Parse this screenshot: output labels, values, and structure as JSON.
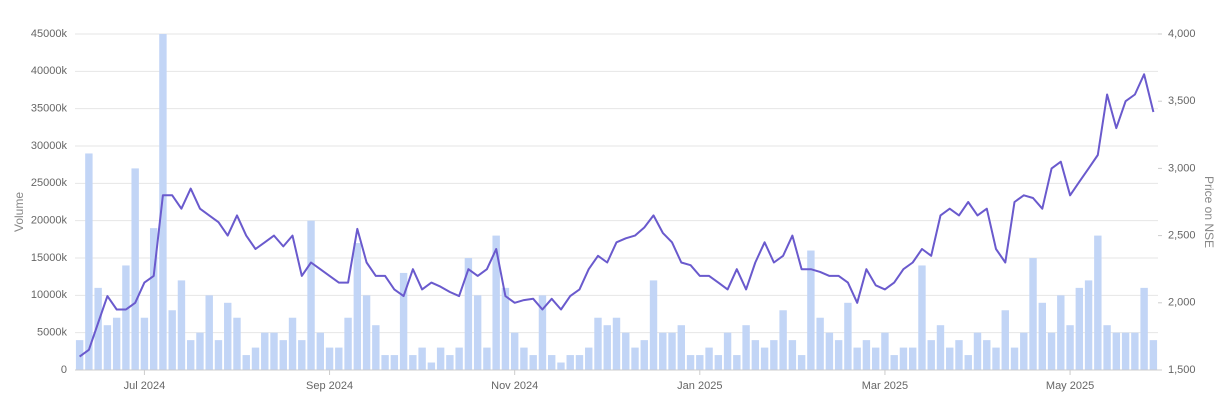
{
  "chart_data": {
    "type": "bar-line",
    "categories": [
      null,
      null,
      null,
      null,
      null,
      null,
      null,
      "Jul 2024",
      null,
      null,
      null,
      null,
      null,
      null,
      null,
      null,
      null,
      null,
      null,
      null,
      null,
      null,
      null,
      null,
      null,
      null,
      null,
      "Sep 2024",
      null,
      null,
      null,
      null,
      null,
      null,
      null,
      null,
      null,
      null,
      null,
      null,
      null,
      null,
      null,
      null,
      null,
      null,
      null,
      "Nov 2024",
      null,
      null,
      null,
      null,
      null,
      null,
      null,
      null,
      null,
      null,
      null,
      null,
      null,
      null,
      null,
      null,
      null,
      null,
      null,
      "Jan 2025",
      null,
      null,
      null,
      null,
      null,
      null,
      null,
      null,
      null,
      null,
      null,
      null,
      null,
      null,
      null,
      null,
      null,
      null,
      null,
      "Mar 2025",
      null,
      null,
      null,
      null,
      null,
      null,
      null,
      null,
      null,
      null,
      null,
      null,
      null,
      null,
      null,
      null,
      null,
      null,
      null,
      "May 2025",
      null,
      null,
      null,
      null,
      null,
      null,
      null,
      null,
      null
    ],
    "series": [
      {
        "name": "Volume",
        "color": "#c2d5f6",
        "values": [
          4000,
          29000,
          11000,
          6000,
          7000,
          14000,
          27000,
          7000,
          19000,
          45000,
          8000,
          12000,
          4000,
          5000,
          10000,
          4000,
          9000,
          7000,
          2000,
          3000,
          5000,
          5000,
          4000,
          7000,
          4000,
          20000,
          5000,
          3000,
          3000,
          7000,
          17000,
          10000,
          6000,
          2000,
          2000,
          13000,
          2000,
          3000,
          1000,
          3000,
          2000,
          3000,
          15000,
          10000,
          3000,
          18000,
          11000,
          5000,
          3000,
          2000,
          10000,
          2000,
          1000,
          2000,
          2000,
          3000,
          7000,
          6000,
          7000,
          5000,
          3000,
          4000,
          12000,
          5000,
          5000,
          6000,
          2000,
          2000,
          3000,
          2000,
          5000,
          2000,
          6000,
          4000,
          3000,
          4000,
          8000,
          4000,
          2000,
          16000,
          7000,
          5000,
          4000,
          9000,
          3000,
          4000,
          3000,
          5000,
          2000,
          3000,
          3000,
          14000,
          4000,
          6000,
          3000,
          4000,
          2000,
          5000,
          4000,
          3000,
          8000,
          3000,
          5000,
          15000,
          9000,
          5000,
          10000,
          6000,
          11000,
          12000,
          18000,
          6000,
          5000,
          5000,
          5000,
          11000,
          4000
        ]
      },
      {
        "name": "Price on NSE",
        "color": "#6a5acd",
        "axis": "y2",
        "values": [
          1600,
          1650,
          1850,
          2050,
          1950,
          1950,
          2000,
          2150,
          2200,
          2800,
          2800,
          2700,
          2850,
          2700,
          2650,
          2600,
          2500,
          2650,
          2500,
          2400,
          2450,
          2500,
          2420,
          2500,
          2200,
          2300,
          2250,
          2200,
          2150,
          2150,
          2550,
          2300,
          2200,
          2200,
          2100,
          2050,
          2250,
          2100,
          2150,
          2120,
          2080,
          2050,
          2250,
          2200,
          2250,
          2400,
          2050,
          2000,
          2020,
          2030,
          1950,
          2030,
          1950,
          2050,
          2100,
          2250,
          2350,
          2300,
          2450,
          2480,
          2500,
          2560,
          2650,
          2520,
          2450,
          2300,
          2280,
          2200,
          2200,
          2150,
          2100,
          2250,
          2100,
          2300,
          2450,
          2300,
          2350,
          2500,
          2250,
          2250,
          2230,
          2200,
          2200,
          2150,
          2000,
          2250,
          2130,
          2100,
          2150,
          2250,
          2300,
          2400,
          2350,
          2650,
          2700,
          2650,
          2750,
          2650,
          2700,
          2400,
          2300,
          2750,
          2800,
          2780,
          2700,
          3000,
          3050,
          2800,
          2900,
          3000,
          3100,
          3550,
          3300,
          3500,
          3550,
          3700,
          3420
        ]
      }
    ],
    "ylabel": "Volume",
    "y2label": "Price on NSE",
    "ylim": [
      0,
      45000
    ],
    "yticks": [
      0,
      {
        "value": 5000,
        "label": "5000k"
      },
      {
        "value": 10000,
        "label": "10000k"
      },
      {
        "value": 15000,
        "label": "15000k"
      },
      {
        "value": 20000,
        "label": "20000k"
      },
      {
        "value": 25000,
        "label": "25000k"
      },
      {
        "value": 30000,
        "label": "30000k"
      },
      {
        "value": 35000,
        "label": "35000k"
      },
      {
        "value": 40000,
        "label": "40000k"
      },
      {
        "value": 45000,
        "label": "45000k"
      }
    ],
    "y2lim": [
      1500,
      4000
    ],
    "y2ticks": [
      {
        "value": 1500,
        "label": "1,500"
      },
      {
        "value": 2000,
        "label": "2,000"
      },
      {
        "value": 2500,
        "label": "2,500"
      },
      {
        "value": 3000,
        "label": "3,000"
      },
      {
        "value": 3500,
        "label": "3,500"
      },
      {
        "value": 4000,
        "label": "4,000"
      }
    ],
    "grid": true
  }
}
